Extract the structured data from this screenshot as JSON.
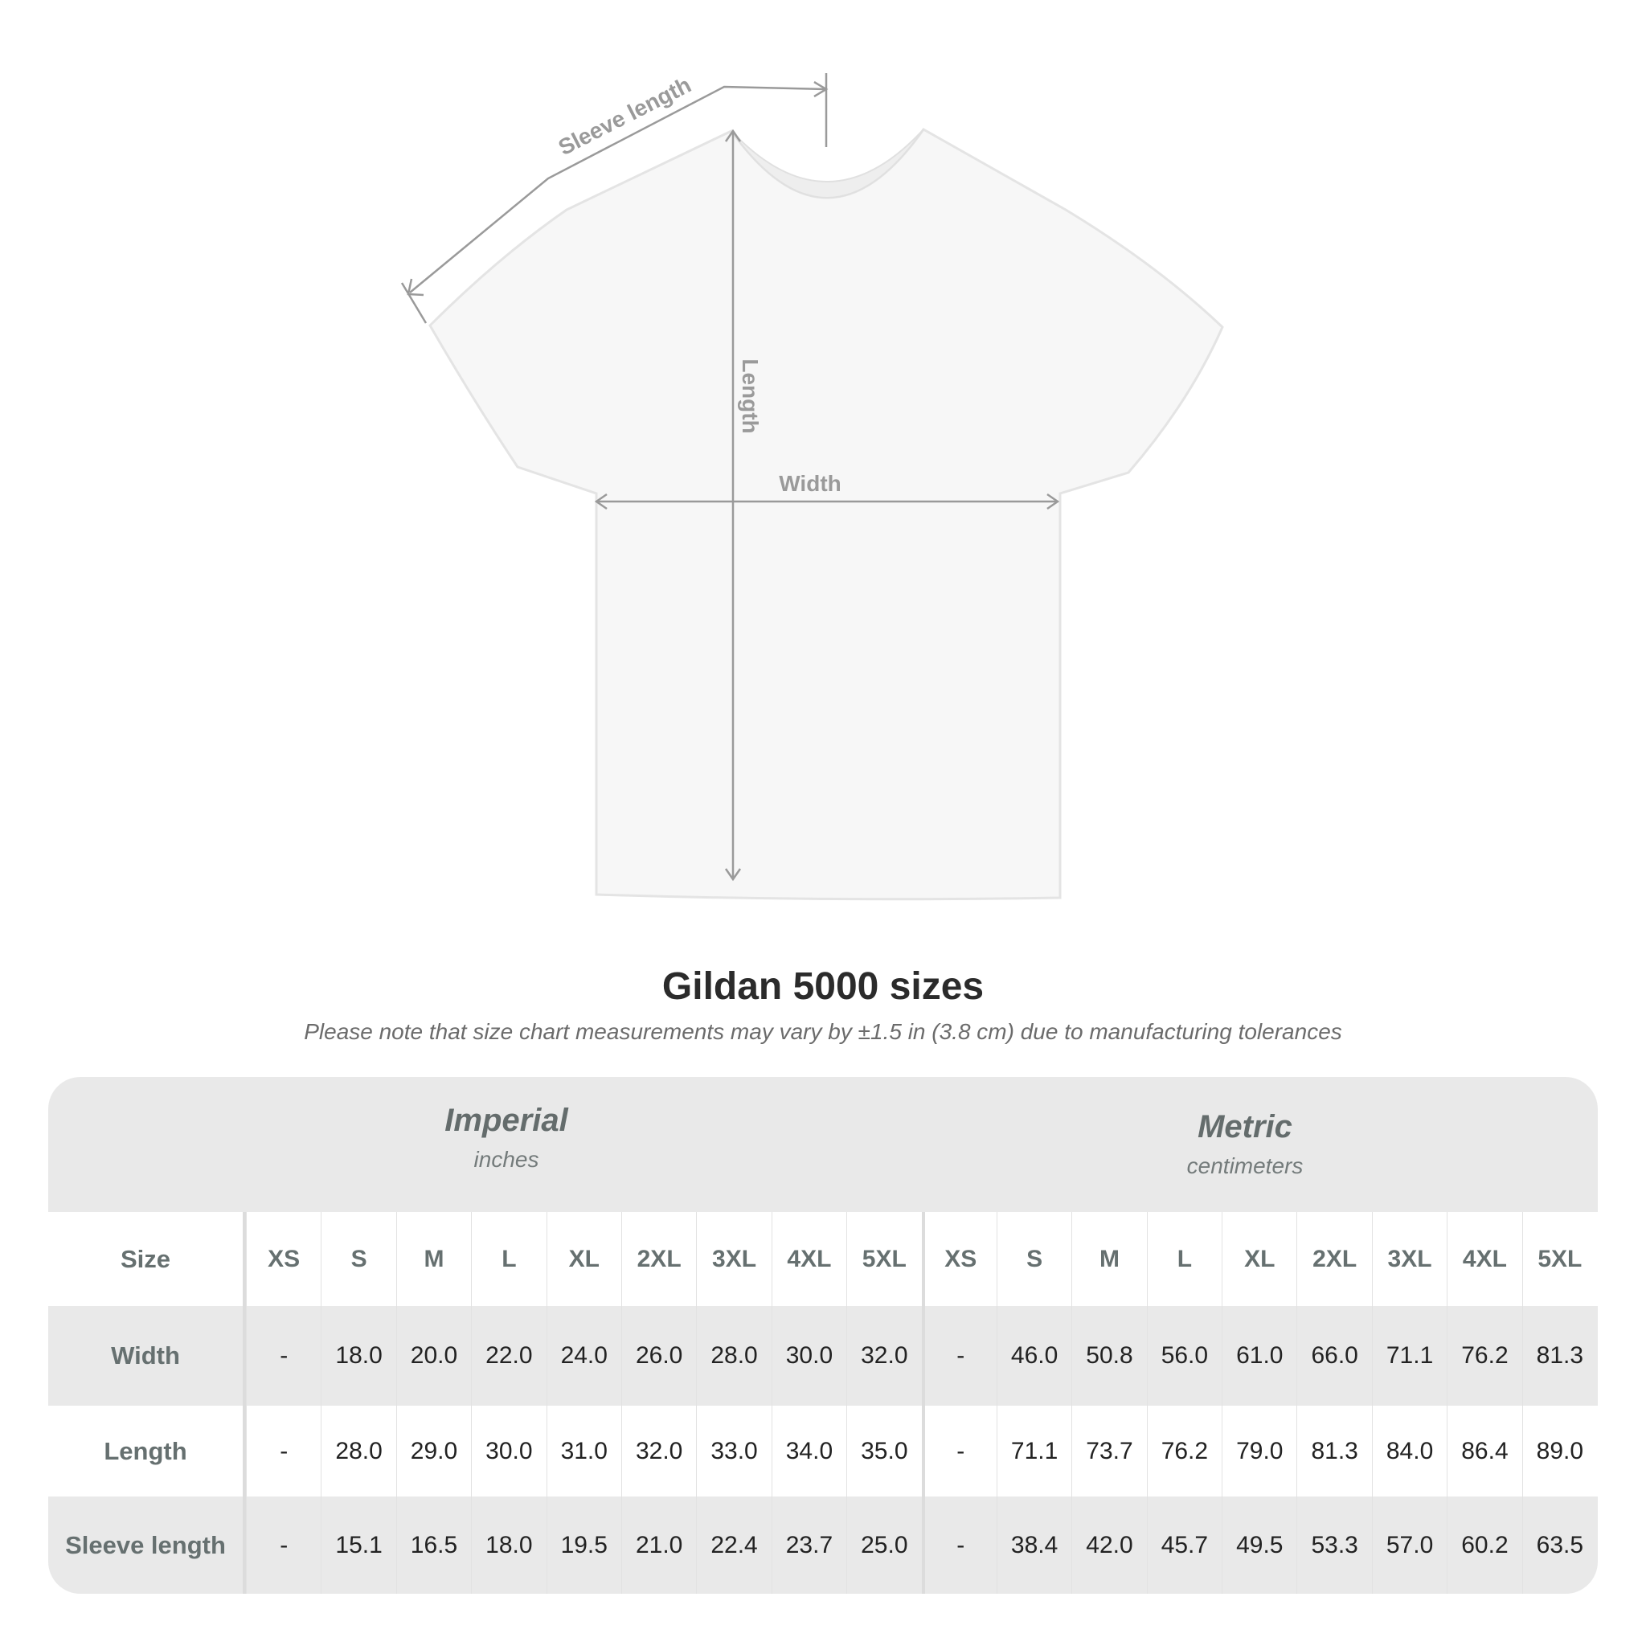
{
  "diagram": {
    "labels": {
      "sleeve": "Sleeve length",
      "length": "Length",
      "width": "Width"
    },
    "shirt_color": "#f7f7f7",
    "line_color": "#9a9a9a"
  },
  "title": "Gildan 5000 sizes",
  "subtitle": "Please note that size chart measurements may vary by ±1.5 in (3.8 cm) due to manufacturing tolerances",
  "table": {
    "imperial": {
      "name": "Imperial",
      "unit": "inches"
    },
    "metric": {
      "name": "Metric",
      "unit": "centimeters"
    },
    "size_label": "Size",
    "sizes": [
      "XS",
      "S",
      "M",
      "L",
      "XL",
      "2XL",
      "3XL",
      "4XL",
      "5XL"
    ],
    "rows": [
      {
        "label": "Width",
        "imperial": [
          "-",
          "18.0",
          "20.0",
          "22.0",
          "24.0",
          "26.0",
          "28.0",
          "30.0",
          "32.0"
        ],
        "metric": [
          "-",
          "46.0",
          "50.8",
          "56.0",
          "61.0",
          "66.0",
          "71.1",
          "76.2",
          "81.3"
        ]
      },
      {
        "label": "Length",
        "imperial": [
          "-",
          "28.0",
          "29.0",
          "30.0",
          "31.0",
          "32.0",
          "33.0",
          "34.0",
          "35.0"
        ],
        "metric": [
          "-",
          "71.1",
          "73.7",
          "76.2",
          "79.0",
          "81.3",
          "84.0",
          "86.4",
          "89.0"
        ]
      },
      {
        "label": "Sleeve length",
        "imperial": [
          "-",
          "15.1",
          "16.5",
          "18.0",
          "19.5",
          "21.0",
          "22.4",
          "23.7",
          "25.0"
        ],
        "metric": [
          "-",
          "38.4",
          "42.0",
          "45.7",
          "49.5",
          "53.3",
          "57.0",
          "60.2",
          "63.5"
        ]
      }
    ]
  }
}
